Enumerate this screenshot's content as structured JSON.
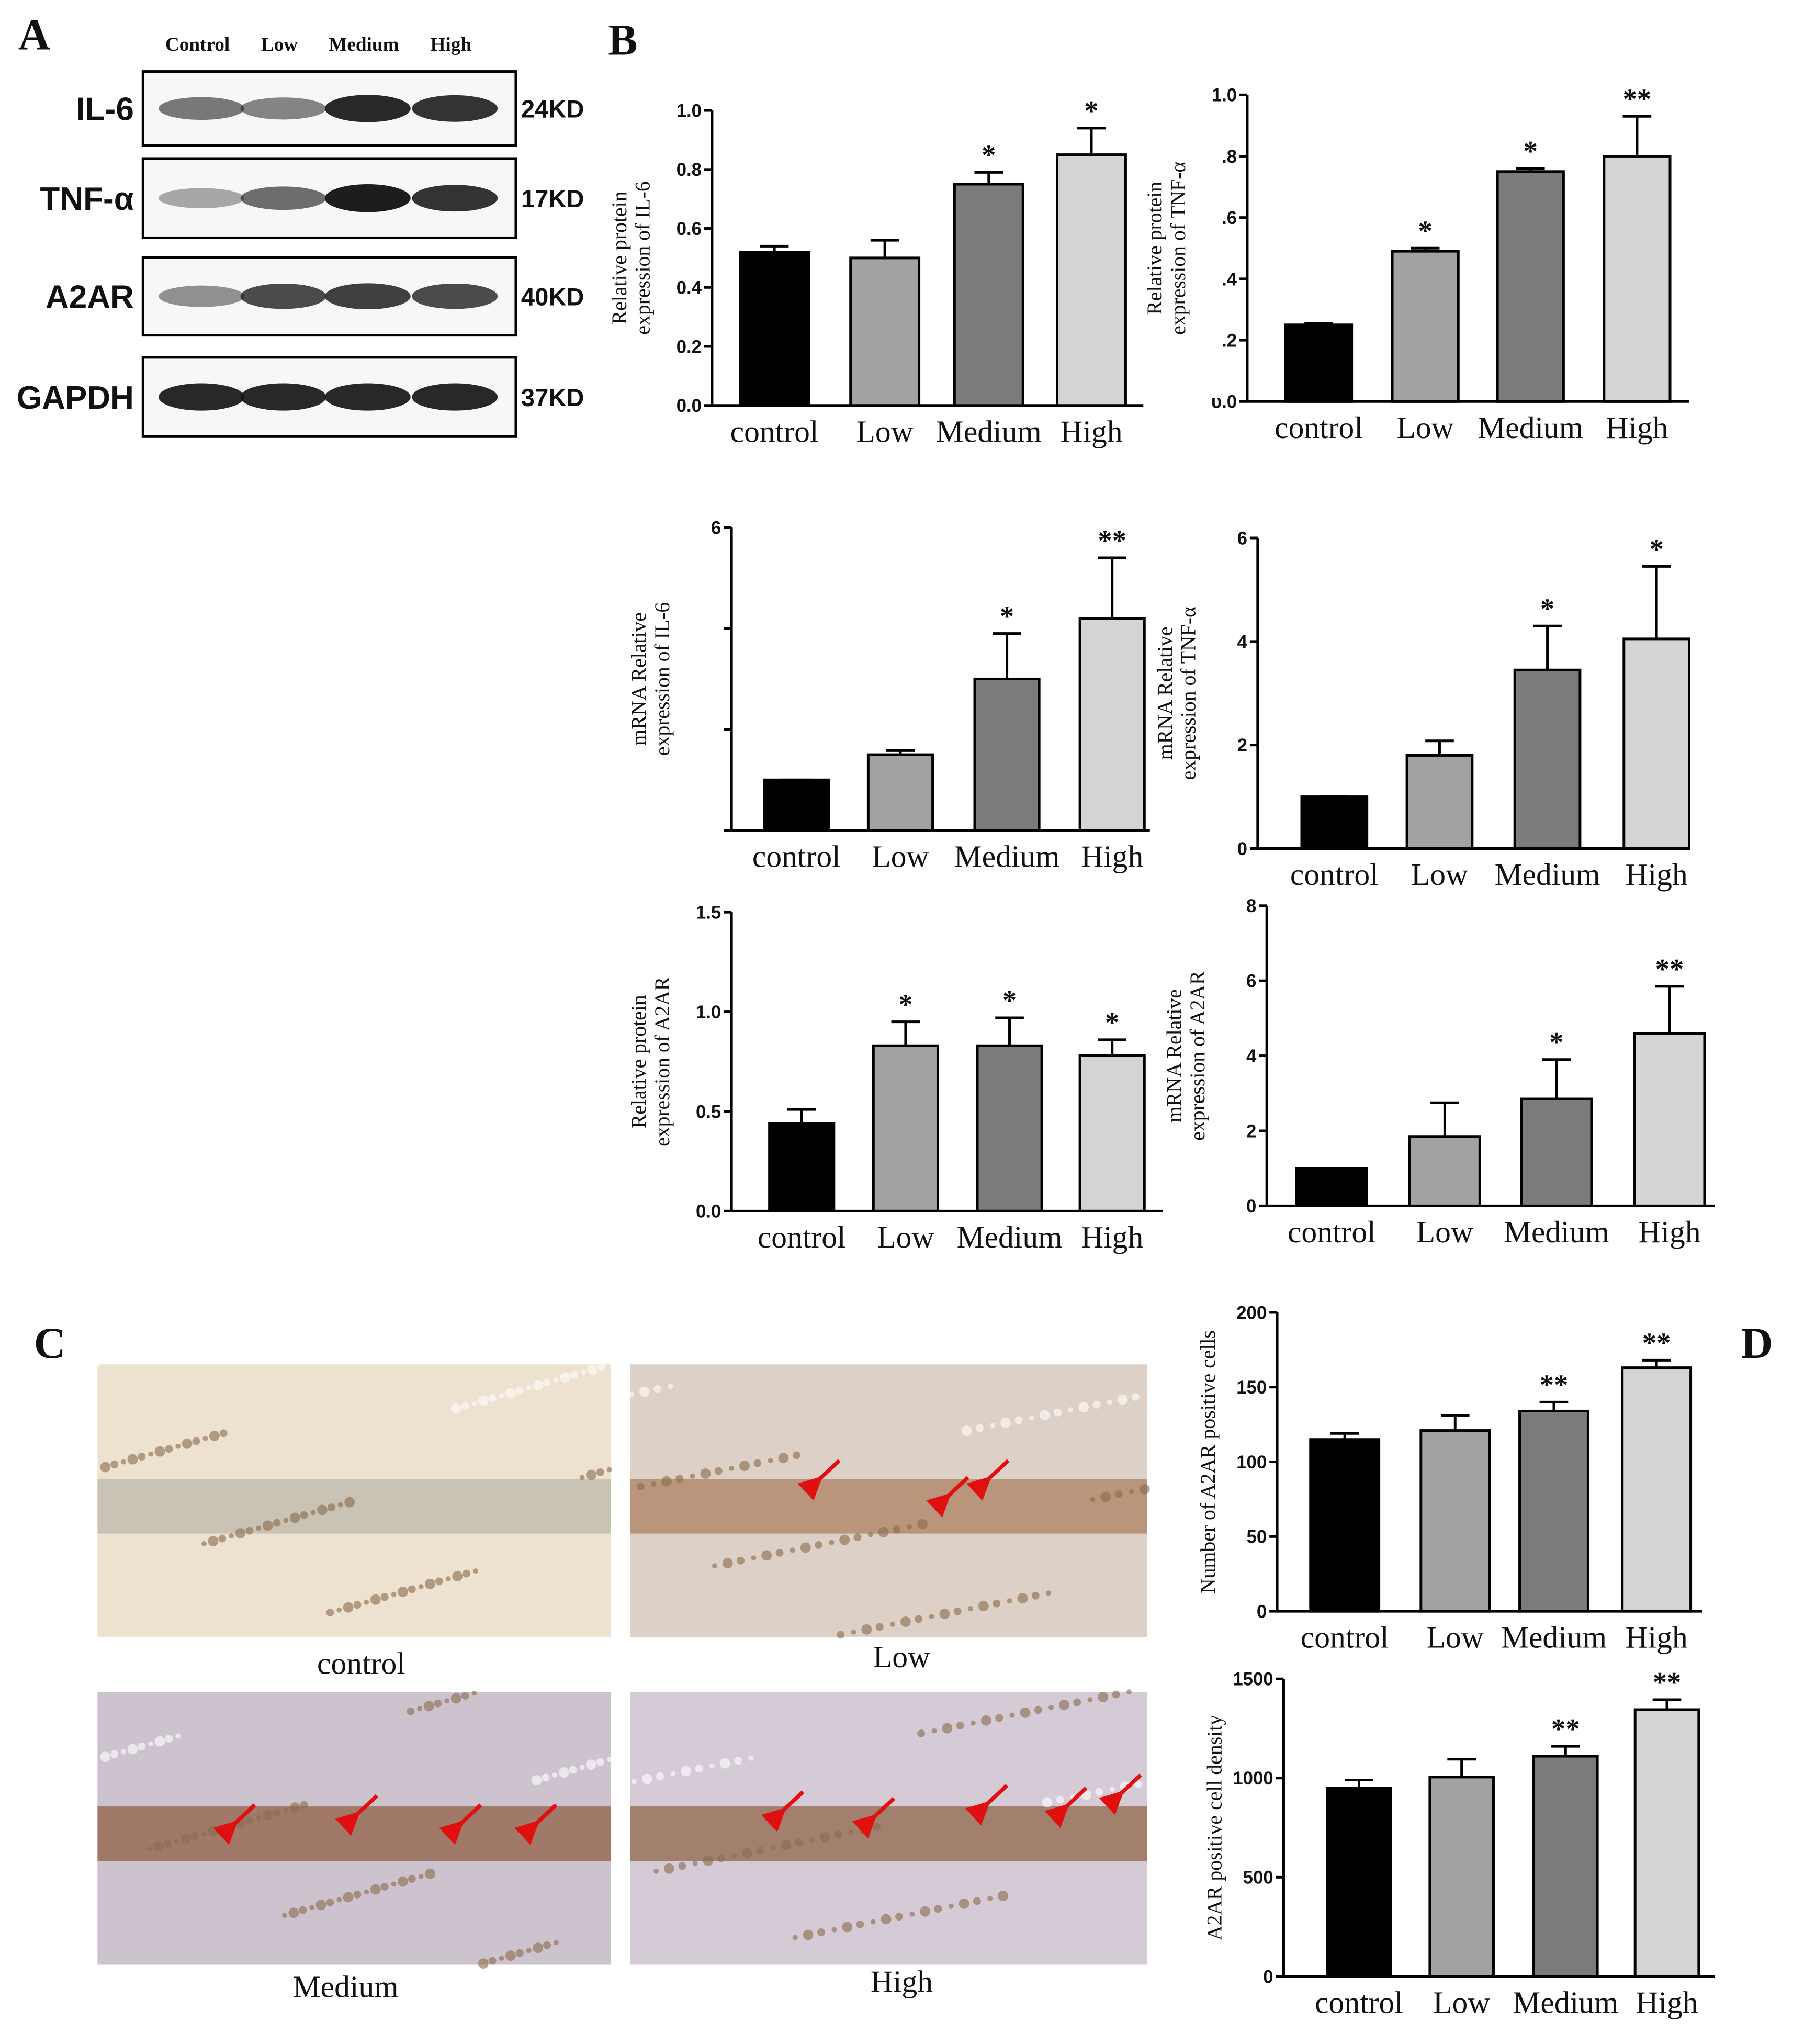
{
  "panels": {
    "a": "A",
    "b": "B",
    "c": "C",
    "d": "D"
  },
  "western_blot": {
    "lanes": [
      "Control",
      "Low",
      "Medium",
      "High"
    ],
    "rows": [
      {
        "label": "IL-6",
        "size": "24KD"
      },
      {
        "label": "TNF-α",
        "size": "17KD"
      },
      {
        "label": "A2AR",
        "size": "40KD"
      },
      {
        "label": "GAPDH",
        "size": "37KD"
      }
    ]
  },
  "ihc": {
    "captions": [
      "control",
      "Low",
      "Medium",
      "High"
    ]
  },
  "chart_data": [
    {
      "type": "bar",
      "ylabel": [
        "Relative protein",
        "expression of IL-6"
      ],
      "categories": [
        "control",
        "Low",
        "Medium",
        "High"
      ],
      "values": [
        0.52,
        0.5,
        0.75,
        0.85
      ],
      "errors": [
        0.02,
        0.06,
        0.04,
        0.09
      ],
      "annotations": [
        null,
        null,
        "*",
        "*"
      ],
      "colors": [
        "#000000",
        "#a2a2a4",
        "#7b7b7d",
        "#d4d4d4"
      ],
      "ylim": [
        0,
        1
      ],
      "yticks": [
        {
          "value": 0,
          "label": "0.0"
        },
        0.2,
        0.4,
        0.6,
        0.8,
        {
          "value": 1,
          "label": "1.0"
        }
      ]
    },
    {
      "type": "bar",
      "ylabel": [
        "Relative protein",
        "expression of TNF-α"
      ],
      "categories": [
        "control",
        "Low",
        "Medium",
        "High"
      ],
      "values": [
        0.25,
        0.49,
        0.75,
        0.8
      ],
      "errors": [
        0.005,
        0.01,
        0.01,
        0.13
      ],
      "annotations": [
        null,
        "*",
        "*",
        "**"
      ],
      "colors": [
        "#000000",
        "#a2a2a4",
        "#7b7b7d",
        "#d4d4d4"
      ],
      "ylim": [
        0,
        1
      ],
      "yticks": [
        {
          "value": 0,
          "label": "υ.0"
        },
        {
          "value": 0.2,
          "label": ".2"
        },
        {
          "value": 0.4,
          "label": ".4"
        },
        {
          "value": 0.6,
          "label": ".6"
        },
        {
          "value": 0.8,
          "label": ".8"
        },
        {
          "value": 1,
          "label": "1.0"
        }
      ]
    },
    {
      "type": "bar",
      "ylabel": [
        "mRNA Relative",
        "expression  of IL-6"
      ],
      "categories": [
        "control",
        "Low",
        "Medium",
        "High"
      ],
      "values": [
        1.0,
        1.5,
        3.0,
        4.2
      ],
      "errors": [
        0,
        0.08,
        0.9,
        1.2
      ],
      "annotations": [
        null,
        null,
        "*",
        "**"
      ],
      "colors": [
        "#000000",
        "#a2a2a4",
        "#7b7b7d",
        "#d4d4d4"
      ],
      "ylim": [
        0,
        6
      ],
      "yticks": [
        {
          "value": 0,
          "label": null
        },
        {
          "value": 2,
          "label": null
        },
        {
          "value": 4,
          "label": null
        },
        6
      ]
    },
    {
      "type": "bar",
      "ylabel": [
        "mRNA Relative",
        "expression  of  TNF-α"
      ],
      "categories": [
        "control",
        "Low",
        "Medium",
        "High"
      ],
      "values": [
        1.0,
        1.8,
        3.45,
        4.05
      ],
      "errors": [
        0,
        0.28,
        0.85,
        1.4
      ],
      "annotations": [
        null,
        null,
        "*",
        "*"
      ],
      "colors": [
        "#000000",
        "#a2a2a4",
        "#7b7b7d",
        "#d4d4d4"
      ],
      "ylim": [
        0,
        6
      ],
      "yticks": [
        0,
        2,
        4,
        6
      ]
    },
    {
      "type": "bar",
      "ylabel": [
        "Relative protein",
        "expression of A2AR"
      ],
      "categories": [
        "control",
        "Low",
        "Medium",
        "High"
      ],
      "values": [
        0.44,
        0.83,
        0.83,
        0.78
      ],
      "errors": [
        0.07,
        0.12,
        0.14,
        0.08
      ],
      "annotations": [
        null,
        "*",
        "*",
        "*"
      ],
      "colors": [
        "#000000",
        "#a2a2a4",
        "#7b7b7d",
        "#d4d4d4"
      ],
      "ylim": [
        0,
        1.5
      ],
      "yticks": [
        {
          "value": 0,
          "label": "0.0"
        },
        0.5,
        {
          "value": 1,
          "label": "1.0"
        },
        1.5
      ]
    },
    {
      "type": "bar",
      "ylabel": [
        "mRNA Relative",
        "expression of  A2AR"
      ],
      "categories": [
        "control",
        "Low",
        "Medium",
        "High"
      ],
      "values": [
        1.0,
        1.85,
        2.85,
        4.6
      ],
      "errors": [
        0,
        0.9,
        1.05,
        1.25
      ],
      "annotations": [
        null,
        null,
        "*",
        "**"
      ],
      "colors": [
        "#000000",
        "#a2a2a4",
        "#7b7b7d",
        "#d4d4d4"
      ],
      "ylim": [
        0,
        8
      ],
      "yticks": [
        0,
        2,
        4,
        6,
        8
      ]
    },
    {
      "type": "bar",
      "ylabel": [
        "Number of A2AR positive cells"
      ],
      "categories": [
        "control",
        "Low",
        "Medium",
        "High"
      ],
      "values": [
        115,
        121,
        134,
        163
      ],
      "errors": [
        4,
        10,
        6,
        5
      ],
      "annotations": [
        null,
        null,
        "**",
        "**"
      ],
      "colors": [
        "#000000",
        "#a2a2a4",
        "#7b7b7d",
        "#d4d4d4"
      ],
      "ylim": [
        0,
        200
      ],
      "yticks": [
        0,
        50,
        100,
        150,
        200
      ]
    },
    {
      "type": "bar",
      "ylabel": [
        "A2AR positive cell density"
      ],
      "categories": [
        "control",
        "Low",
        "Medium",
        "High"
      ],
      "values": [
        950,
        1005,
        1110,
        1345
      ],
      "errors": [
        40,
        90,
        50,
        50
      ],
      "annotations": [
        null,
        null,
        "**",
        "**"
      ],
      "colors": [
        "#000000",
        "#a2a2a4",
        "#7b7b7d",
        "#d4d4d4"
      ],
      "ylim": [
        0,
        1500
      ],
      "yticks": [
        0,
        500,
        1000,
        1500
      ]
    }
  ]
}
